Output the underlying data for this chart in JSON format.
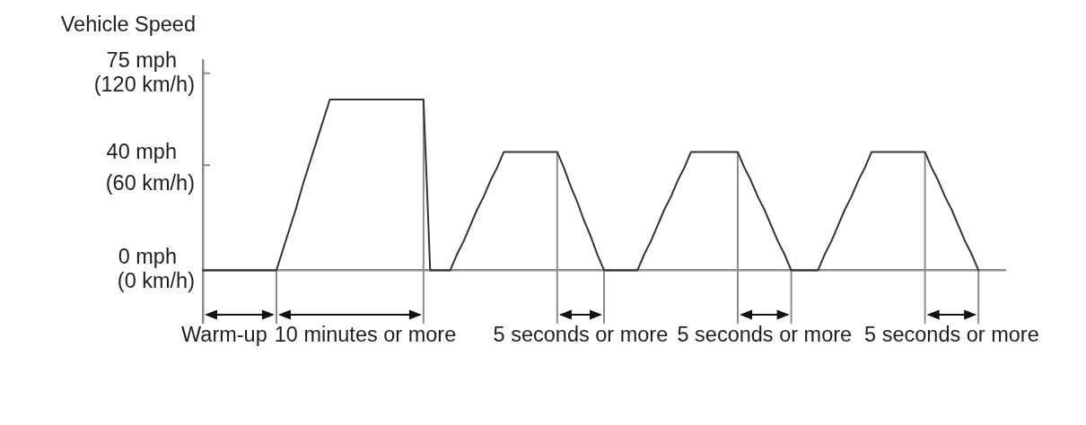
{
  "chart_data": {
    "type": "line",
    "ylabel": "Vehicle Speed",
    "categories": [
      null,
      null,
      null,
      null,
      null,
      null,
      null,
      null,
      null,
      null,
      null,
      null,
      null,
      null,
      null,
      null,
      null,
      null,
      null,
      null,
      null,
      null,
      null,
      null,
      null,
      null,
      null,
      null,
      null,
      null,
      null,
      null,
      null,
      null,
      null,
      null,
      null,
      null,
      null,
      null,
      null,
      null,
      null,
      null,
      null,
      null,
      null,
      null,
      null,
      null,
      null,
      null,
      null,
      null,
      null,
      null,
      null,
      null,
      null,
      null,
      null,
      null,
      null,
      null,
      null,
      null,
      null,
      null,
      null,
      null,
      null,
      null,
      null,
      null,
      null,
      null,
      null,
      null,
      null,
      null,
      null,
      null,
      null,
      null,
      null,
      null,
      null,
      null,
      null,
      null,
      null,
      null,
      null,
      null,
      null,
      null,
      null,
      null,
      null,
      null,
      null,
      null,
      null,
      null,
      null,
      null,
      null,
      null,
      null,
      null,
      null,
      null,
      null,
      null,
      null,
      null,
      null,
      null,
      null,
      null,
      null
    ],
    "values": [
      0,
      0,
      0,
      0,
      0,
      0,
      0,
      0,
      0,
      0,
      0,
      0,
      8,
      16,
      24,
      33,
      41,
      49,
      57,
      65,
      65,
      65,
      65,
      65,
      65,
      65,
      65,
      65,
      65,
      65,
      65,
      65,
      65,
      65,
      0,
      0,
      0,
      0,
      6,
      11,
      17,
      23,
      28,
      34,
      39,
      45,
      45,
      45,
      45,
      45,
      45,
      45,
      45,
      45,
      39,
      32,
      26,
      19,
      13,
      6,
      0,
      0,
      0,
      0,
      0,
      0,
      6,
      11,
      17,
      23,
      28,
      34,
      39,
      45,
      45,
      45,
      45,
      45,
      45,
      45,
      45,
      39,
      34,
      28,
      23,
      17,
      11,
      6,
      0,
      0,
      0,
      0,
      0,
      6,
      11,
      17,
      23,
      28,
      34,
      39,
      45,
      45,
      45,
      45,
      45,
      45,
      45,
      45,
      45,
      39,
      34,
      28,
      23,
      17,
      11,
      6,
      0,
      null,
      null,
      null,
      null
    ],
    "color": "#333333",
    "ylim": [
      -20,
      80
    ],
    "yticks": [
      {
        "value": 0,
        "label": "0 mph"
      },
      {
        "value": 40,
        "label": "40 mph"
      },
      {
        "value": 75,
        "label": "75 mph"
      }
    ],
    "y2lim": [
      -32,
      128
    ],
    "y2ticks": [
      {
        "value": 0,
        "label": "(0 km/h)"
      },
      {
        "value": 60,
        "label": "(60 km/h)"
      },
      {
        "value": 120,
        "label": "(120 km/h)"
      }
    ],
    "tick_labels": "y",
    "annotations": [
      "Warm-up",
      "10 minutes or more",
      "5 seconds or more",
      "5 seconds or more",
      "5 seconds or more"
    ]
  }
}
